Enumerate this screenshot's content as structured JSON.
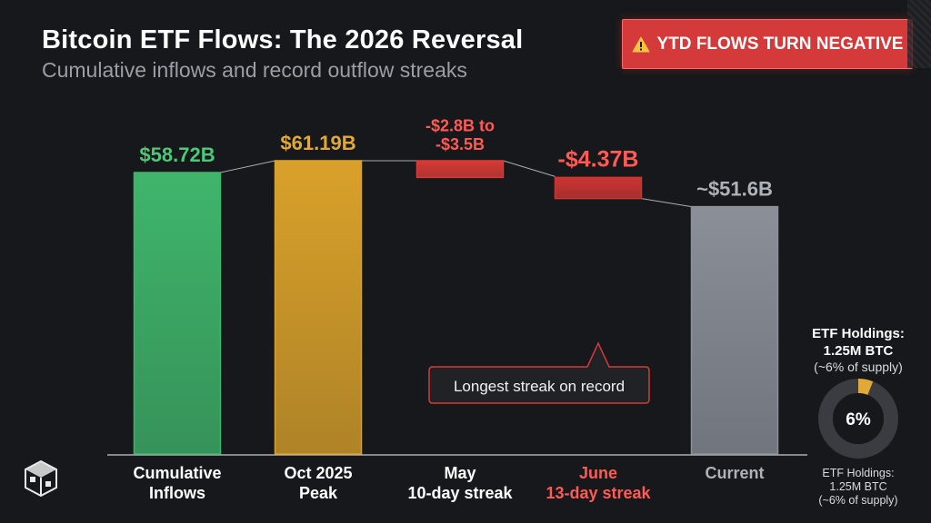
{
  "header": {
    "title": "Bitcoin ETF Flows: The 2026 Reversal",
    "subtitle": "Cumulative inflows and record outflow streaks"
  },
  "alert": {
    "icon": "warning-icon",
    "label": "YTD FLOWS TURN NEGATIVE",
    "color": "#d43a3a"
  },
  "chart_data": {
    "type": "bar",
    "title": "Bitcoin ETF Flows: The 2026 Reversal",
    "subtitle": "Cumulative inflows and record outflow streaks",
    "categories": [
      [
        "Cumulative",
        "Inflows"
      ],
      [
        "Oct 2025",
        "Peak"
      ],
      [
        "May",
        "10-day streak"
      ],
      [
        "June",
        "13-day streak"
      ],
      [
        "Current"
      ]
    ],
    "bars": [
      {
        "start": 0,
        "end": 58.72,
        "labels": [
          "$58.72B"
        ],
        "color": "#3fb56b",
        "label_color": "#4cc878",
        "category_color": "#ffffff"
      },
      {
        "start": 0,
        "end": 61.19,
        "labels": [
          "$61.19B"
        ],
        "color": "#d9a12a",
        "label_color": "#e0a93a",
        "category_color": "#ffffff"
      },
      {
        "start": 61.19,
        "end": 57.7,
        "labels": [
          "-$2.8B to",
          "-$3.5B"
        ],
        "color": "#d83a36",
        "label_color": "#ff5a55",
        "category_color": "#ffffff"
      },
      {
        "start": 57.7,
        "end": 53.3,
        "labels": [
          "-$4.37B"
        ],
        "color": "#cc3532",
        "label_color": "#ff5a55",
        "category_color": "#ff5a55"
      },
      {
        "start": 0,
        "end": 51.6,
        "labels": [
          "~$51.6B"
        ],
        "color": "#8a8f98",
        "label_color": "#aeb2b9",
        "category_color": "#aeb2b9"
      }
    ],
    "unit": "$B",
    "grid": false,
    "callout": {
      "text": "Longest streak on record",
      "target_category": 3
    },
    "side_panel": {
      "title_lines": [
        "ETF Holdings:",
        "1.25M BTC"
      ],
      "note": "(~6% of supply)",
      "percent": 6,
      "percent_label": "6%",
      "footer_lines": [
        "ETF Holdings:",
        "1.25M BTC",
        "(~6% of supply)"
      ],
      "accent": "#e0a93a"
    }
  }
}
